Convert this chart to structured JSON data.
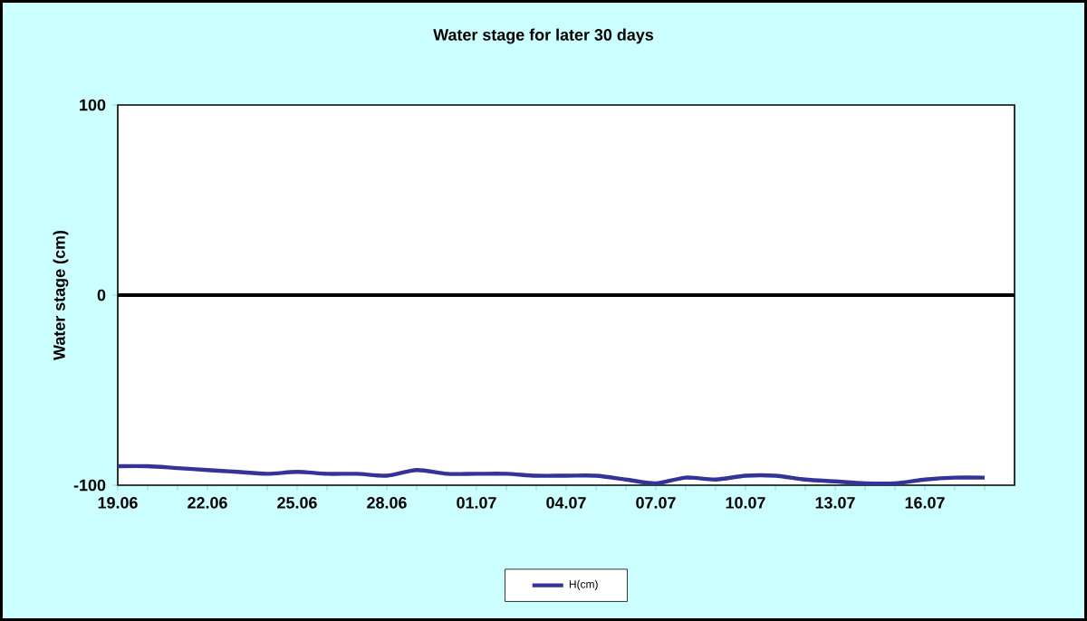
{
  "chart_data": {
    "type": "line",
    "title": "Water stage for later 30 days",
    "ylabel": "Water stage (cm)",
    "categories": [
      "19.06",
      null,
      null,
      "22.06",
      null,
      null,
      "25.06",
      null,
      null,
      "28.06",
      null,
      null,
      "01.07",
      null,
      null,
      "04.07",
      null,
      null,
      "07.07",
      null,
      null,
      "10.07",
      null,
      null,
      "13.07",
      null,
      null,
      "16.07",
      null,
      null
    ],
    "series": [
      {
        "name": "H(cm)",
        "color": "#333399",
        "values": [
          -90,
          -90,
          -91,
          -92,
          -93,
          -94,
          -93,
          -94,
          -94,
          -95,
          -92,
          -94,
          -94,
          -94,
          -95,
          -95,
          -95,
          -97,
          -99,
          -96,
          -97,
          -95,
          -95,
          -97,
          -98,
          -99,
          -99,
          -97,
          -96,
          -96
        ]
      }
    ],
    "ylim": [
      -100,
      100
    ],
    "yticks": [
      -100,
      0,
      100
    ],
    "ref_lines": [
      {
        "axis": "y",
        "value": 0,
        "color": "#000000"
      }
    ],
    "grid": false,
    "legend": "bottom",
    "marker": "none",
    "line_style": "solid"
  }
}
